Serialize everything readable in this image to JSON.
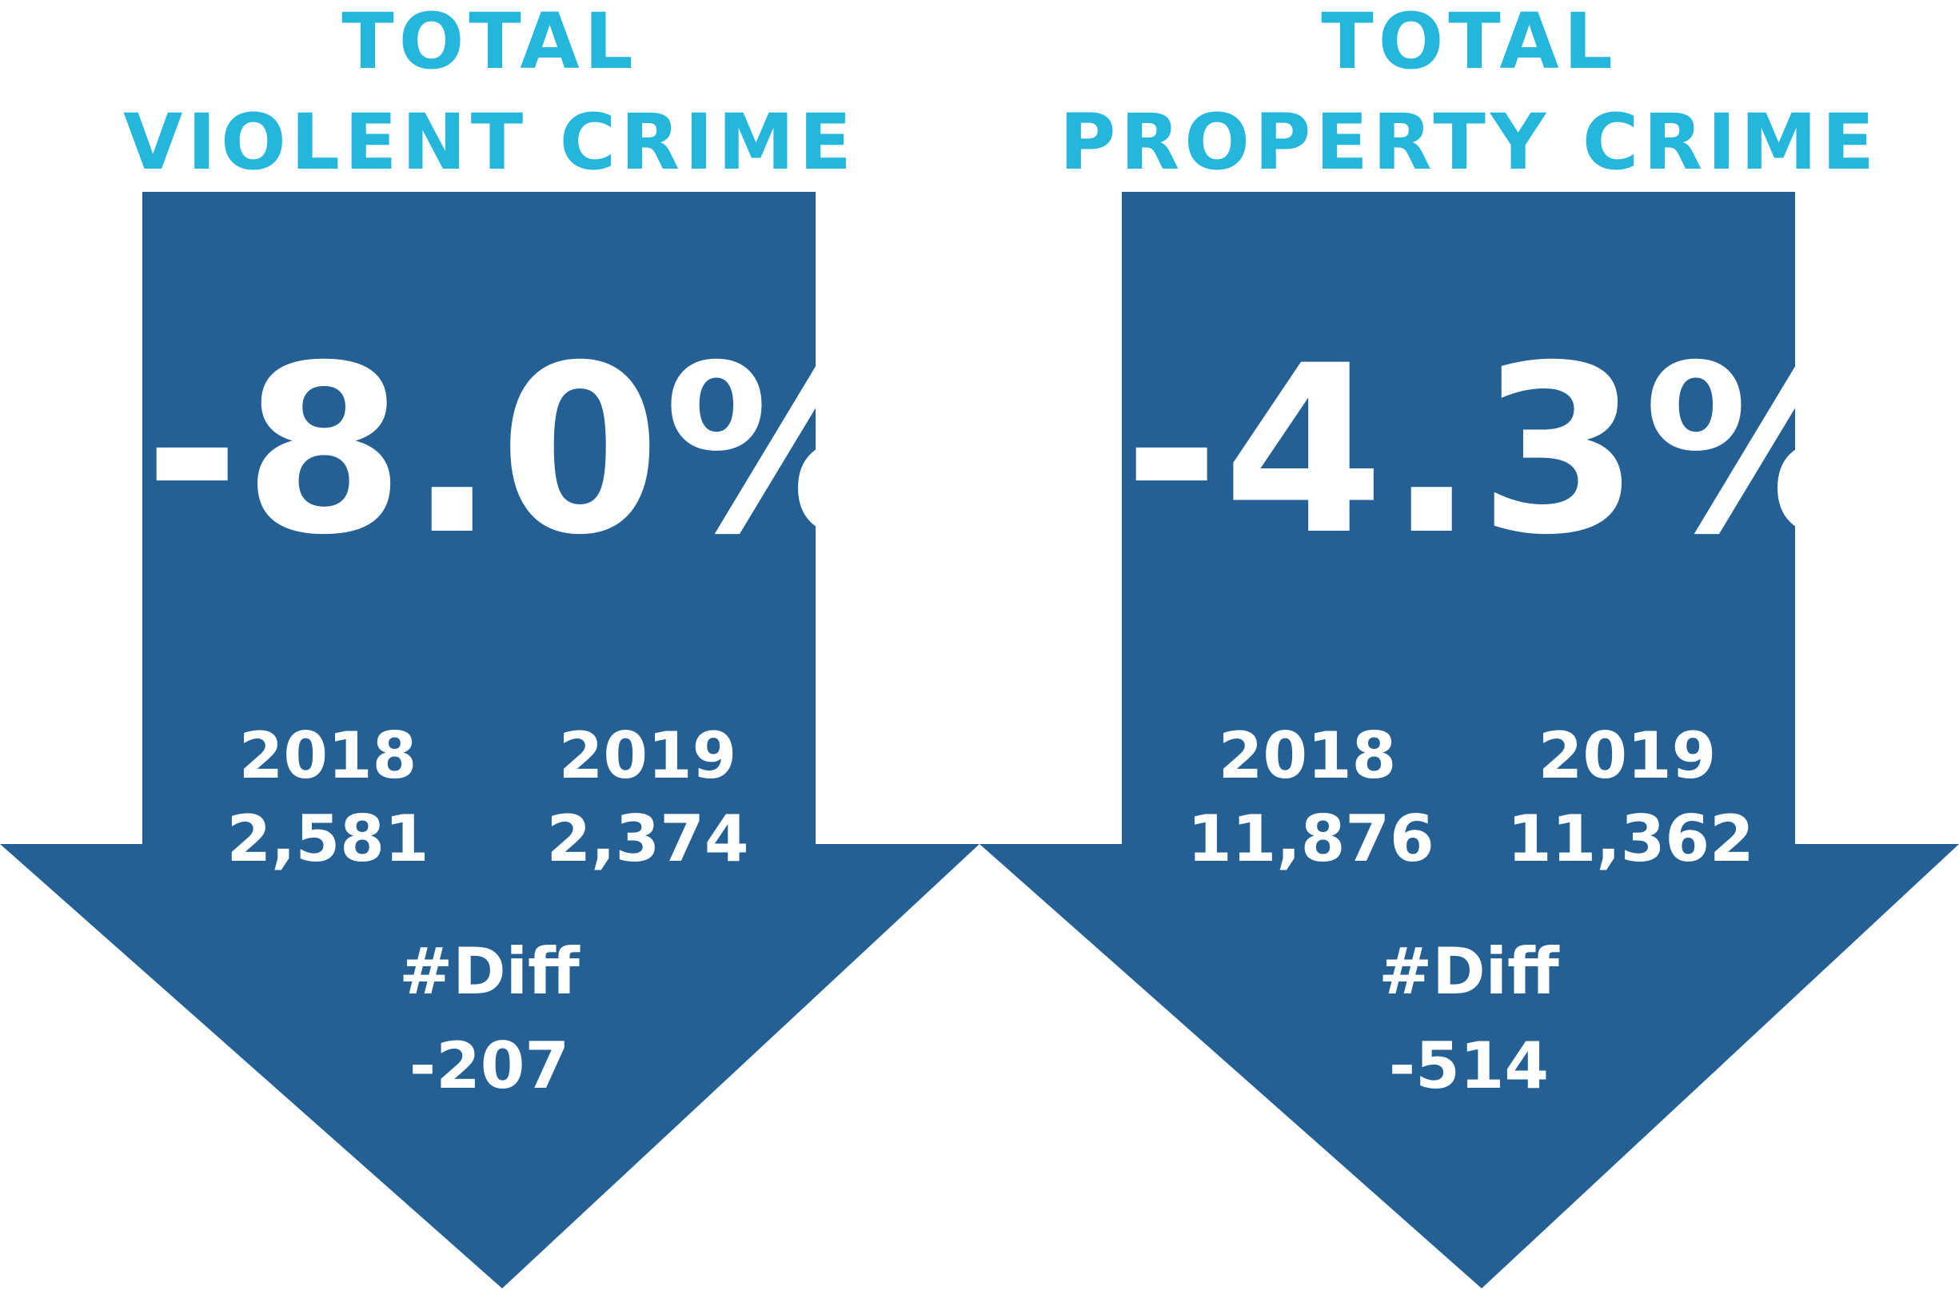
{
  "colors": {
    "arrow": "#246093",
    "title": "#25b6dc",
    "text": "#ffffff"
  },
  "panels": {
    "violent": {
      "title_line1": "TOTAL",
      "title_line2": "VIOLENT CRIME",
      "percent": "-8.0%",
      "year_a": "2018",
      "year_b": "2019",
      "value_a": "2,581",
      "value_b": "2,374",
      "diff_label": "#Diff",
      "diff_value": "-207"
    },
    "property": {
      "title_line1": "TOTAL",
      "title_line2": "PROPERTY CRIME",
      "percent": "-4.3%",
      "year_a": "2018",
      "year_b": "2019",
      "value_a": "11,876",
      "value_b": "11,362",
      "diff_label": "#Diff",
      "diff_value": "-514"
    }
  }
}
